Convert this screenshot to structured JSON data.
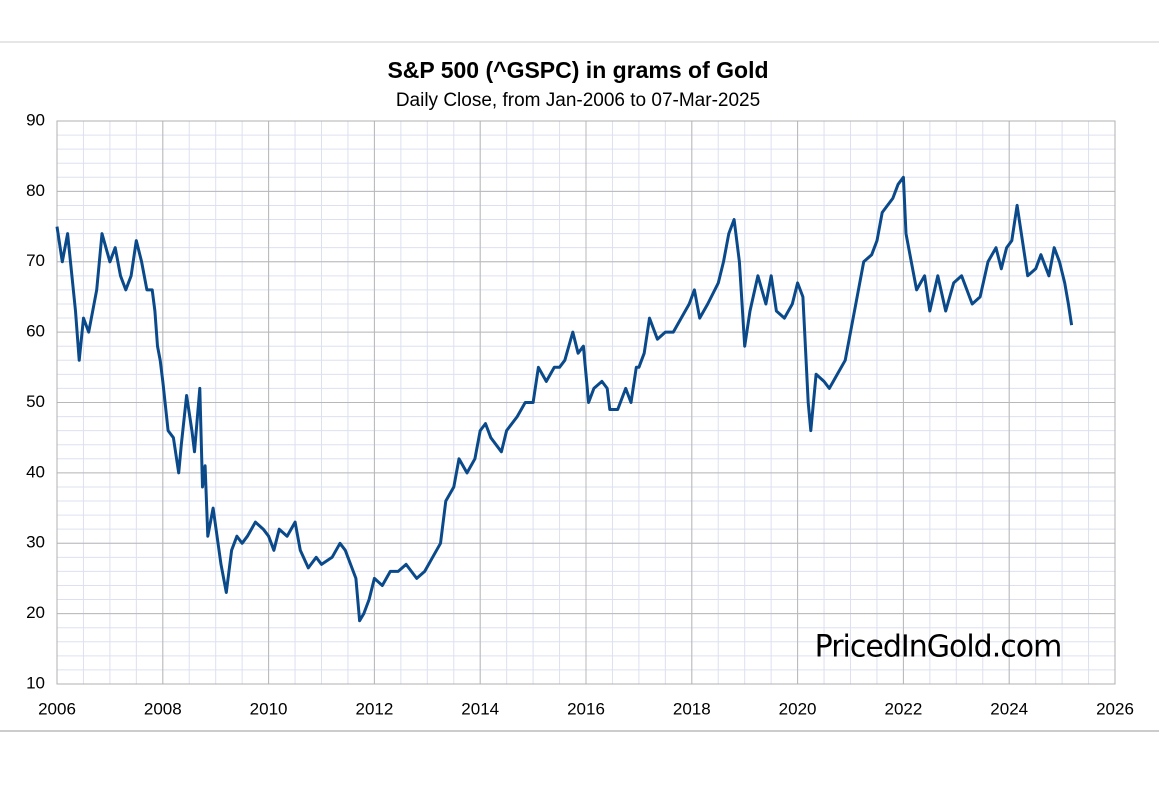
{
  "chart_data": {
    "type": "line",
    "title": "S&P 500 (^GSPC) in grams of Gold",
    "subtitle": "Daily Close, from Jan-2006 to 07-Mar-2025",
    "watermark": "PricedInGold.com",
    "xlim": [
      2006,
      2026
    ],
    "xticks": [
      2006,
      2008,
      2010,
      2012,
      2014,
      2016,
      2018,
      2020,
      2022,
      2024,
      2026
    ],
    "ylim": [
      10,
      90
    ],
    "yticks": [
      10,
      20,
      30,
      40,
      50,
      60,
      70,
      80,
      90
    ],
    "grid": true,
    "minor_grid": {
      "x": 0.5,
      "y": 2
    },
    "series": [
      {
        "color": "#0b4a8a",
        "x": [
          2006.0,
          2006.1,
          2006.2,
          2006.35,
          2006.42,
          2006.5,
          2006.6,
          2006.75,
          2006.85,
          2007.0,
          2007.1,
          2007.2,
          2007.3,
          2007.4,
          2007.5,
          2007.6,
          2007.7,
          2007.8,
          2007.85,
          2007.9,
          2007.95,
          2008.0,
          2008.1,
          2008.2,
          2008.3,
          2008.35,
          2008.45,
          2008.55,
          2008.6,
          2008.7,
          2008.75,
          2008.8,
          2008.85,
          2008.95,
          2009.1,
          2009.2,
          2009.3,
          2009.4,
          2009.5,
          2009.6,
          2009.75,
          2009.9,
          2010.0,
          2010.1,
          2010.2,
          2010.35,
          2010.5,
          2010.6,
          2010.75,
          2010.9,
          2011.0,
          2011.2,
          2011.35,
          2011.45,
          2011.55,
          2011.65,
          2011.72,
          2011.8,
          2011.9,
          2012.0,
          2012.15,
          2012.3,
          2012.45,
          2012.6,
          2012.8,
          2012.95,
          2013.1,
          2013.25,
          2013.35,
          2013.5,
          2013.6,
          2013.75,
          2013.9,
          2014.0,
          2014.1,
          2014.2,
          2014.4,
          2014.5,
          2014.7,
          2014.85,
          2015.0,
          2015.1,
          2015.25,
          2015.4,
          2015.5,
          2015.6,
          2015.75,
          2015.85,
          2015.95,
          2016.05,
          2016.15,
          2016.3,
          2016.4,
          2016.45,
          2016.6,
          2016.75,
          2016.85,
          2016.95,
          2017.0,
          2017.1,
          2017.2,
          2017.35,
          2017.5,
          2017.65,
          2017.8,
          2017.95,
          2018.05,
          2018.15,
          2018.3,
          2018.5,
          2018.6,
          2018.7,
          2018.8,
          2018.9,
          2019.0,
          2019.1,
          2019.25,
          2019.4,
          2019.5,
          2019.6,
          2019.75,
          2019.9,
          2020.0,
          2020.1,
          2020.2,
          2020.25,
          2020.35,
          2020.5,
          2020.6,
          2020.75,
          2020.9,
          2021.0,
          2021.1,
          2021.25,
          2021.4,
          2021.5,
          2021.6,
          2021.7,
          2021.8,
          2021.9,
          2022.0,
          2022.05,
          2022.15,
          2022.25,
          2022.4,
          2022.5,
          2022.65,
          2022.8,
          2022.95,
          2023.1,
          2023.2,
          2023.3,
          2023.45,
          2023.6,
          2023.75,
          2023.85,
          2023.95,
          2024.05,
          2024.15,
          2024.25,
          2024.35,
          2024.5,
          2024.6,
          2024.75,
          2024.85,
          2024.95,
          2025.05,
          2025.12,
          2025.18
        ],
        "values": [
          75,
          70,
          74,
          63,
          56,
          62,
          60,
          66,
          74,
          70,
          72,
          68,
          66,
          68,
          73,
          70,
          66,
          66,
          63,
          58,
          56,
          53,
          46,
          45,
          40,
          44,
          51,
          46,
          43,
          52,
          38,
          41,
          31,
          35,
          27,
          23,
          29,
          31,
          30,
          31,
          33,
          32,
          31,
          29,
          32,
          31,
          33,
          29,
          26.5,
          28,
          27,
          28,
          30,
          29,
          27,
          25,
          19,
          20,
          22,
          25,
          24,
          26,
          26,
          27,
          25,
          26,
          28,
          30,
          36,
          38,
          42,
          40,
          42,
          46,
          47,
          45,
          43,
          46,
          48,
          50,
          50,
          55,
          53,
          55,
          55,
          56,
          60,
          57,
          58,
          50,
          52,
          53,
          52,
          49,
          49,
          52,
          50,
          55,
          55,
          57,
          62,
          59,
          60,
          60,
          62,
          64,
          66,
          62,
          64,
          67,
          70,
          74,
          76,
          70,
          58,
          63,
          68,
          64,
          68,
          63,
          62,
          64,
          67,
          65,
          50,
          46,
          54,
          53,
          52,
          54,
          56,
          60,
          64,
          70,
          71,
          73,
          77,
          78,
          79,
          81,
          82,
          74,
          70,
          66,
          68,
          63,
          68,
          63,
          67,
          68,
          66,
          64,
          65,
          70,
          72,
          69,
          72,
          73,
          78,
          73,
          68,
          69,
          71,
          68,
          72,
          70,
          67,
          64,
          61
        ]
      }
    ]
  }
}
